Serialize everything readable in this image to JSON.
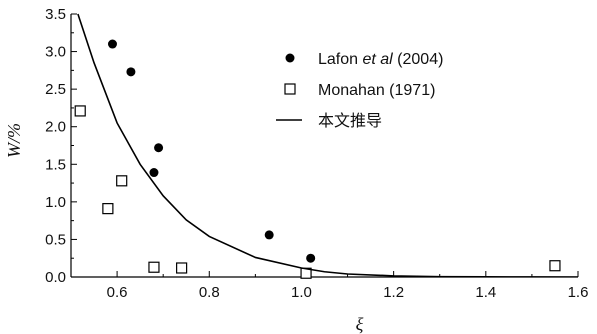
{
  "chart_data": {
    "type": "scatter",
    "xlabel": "ξ",
    "ylabel": "W/%",
    "xlim": [
      0.5,
      1.6
    ],
    "ylim": [
      0.0,
      3.5
    ],
    "x_ticks": [
      "0.6",
      "0.8",
      "1.0",
      "1.2",
      "1.4",
      "1.6"
    ],
    "x_tick_values": [
      0.6,
      0.8,
      1.0,
      1.2,
      1.4,
      1.6
    ],
    "y_ticks": [
      "0.0",
      "0.5",
      "1.0",
      "1.5",
      "2.0",
      "2.5",
      "3.0",
      "3.5"
    ],
    "y_tick_values": [
      0.0,
      0.5,
      1.0,
      1.5,
      2.0,
      2.5,
      3.0,
      3.5
    ],
    "grid": false,
    "legend_position": "top-right",
    "series": [
      {
        "name": "Lafon et al (2004)",
        "legend_parts": [
          {
            "text": "Lafon ",
            "italic": false
          },
          {
            "text": "et al",
            "italic": true
          },
          {
            "text": " (2004)",
            "italic": false
          }
        ],
        "marker": "filled-circle",
        "x": [
          0.59,
          0.63,
          0.69,
          0.68,
          0.93,
          1.02
        ],
        "y": [
          3.1,
          2.73,
          1.72,
          1.39,
          0.56,
          0.25
        ]
      },
      {
        "name": "Monahan (1971)",
        "marker": "open-square",
        "x": [
          0.52,
          0.58,
          0.61,
          0.68,
          0.74,
          1.01,
          1.55
        ],
        "y": [
          2.21,
          0.91,
          1.28,
          0.13,
          0.12,
          0.05,
          0.15
        ]
      },
      {
        "name": "本文推导",
        "marker": "line",
        "x": [
          0.515,
          0.55,
          0.6,
          0.65,
          0.7,
          0.75,
          0.8,
          0.9,
          1.0,
          1.05,
          1.1,
          1.2,
          1.3,
          1.4,
          1.5,
          1.6
        ],
        "y": [
          3.5,
          2.85,
          2.05,
          1.5,
          1.08,
          0.76,
          0.54,
          0.26,
          0.12,
          0.07,
          0.04,
          0.015,
          0.005,
          0.002,
          0.001,
          0.0
        ]
      }
    ]
  }
}
